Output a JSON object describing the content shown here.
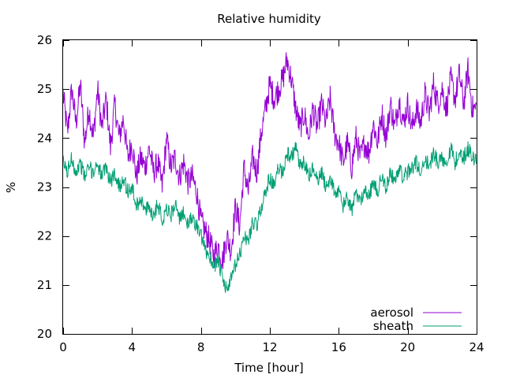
{
  "chart_data": {
    "type": "line",
    "title": "Relative humidity",
    "xlabel": "Time [hour]",
    "ylabel": "%",
    "xlim": [
      0,
      24
    ],
    "ylim": [
      20,
      26
    ],
    "xticks": [
      0,
      4,
      8,
      12,
      16,
      20,
      24
    ],
    "yticks": [
      20,
      21,
      22,
      23,
      24,
      25,
      26
    ],
    "grid": false,
    "legend_position": "bottom-right",
    "series": [
      {
        "name": "aerosol",
        "color": "#9400d3",
        "x": [
          0,
          0.25,
          0.5,
          0.75,
          1,
          1.25,
          1.5,
          1.75,
          2,
          2.25,
          2.5,
          2.75,
          3,
          3.25,
          3.5,
          3.75,
          4,
          4.25,
          4.5,
          4.75,
          5,
          5.25,
          5.5,
          5.75,
          6,
          6.25,
          6.5,
          6.75,
          7,
          7.25,
          7.5,
          7.75,
          8,
          8.25,
          8.5,
          8.75,
          9,
          9.25,
          9.5,
          9.75,
          10,
          10.25,
          10.5,
          10.75,
          11,
          11.25,
          11.5,
          11.75,
          12,
          12.25,
          12.5,
          12.75,
          13,
          13.25,
          13.5,
          13.75,
          14,
          14.25,
          14.5,
          14.75,
          15,
          15.25,
          15.5,
          15.75,
          16,
          16.25,
          16.5,
          16.75,
          17,
          17.25,
          17.5,
          17.75,
          18,
          18.25,
          18.5,
          18.75,
          19,
          19.25,
          19.5,
          19.75,
          20,
          20.25,
          20.5,
          20.75,
          21,
          21.25,
          21.5,
          21.75,
          22,
          22.25,
          22.5,
          22.75,
          23,
          23.25,
          23.5,
          23.75
        ],
        "values": [
          24.9,
          24.1,
          25.0,
          24.3,
          25.1,
          23.9,
          24.6,
          24.0,
          25.0,
          24.2,
          24.8,
          23.8,
          24.7,
          24.0,
          24.4,
          23.6,
          23.9,
          23.2,
          23.6,
          23.4,
          23.8,
          23.3,
          23.5,
          23.0,
          24.0,
          23.4,
          23.6,
          23.2,
          23.5,
          23.1,
          23.2,
          22.9,
          22.3,
          22.1,
          21.9,
          21.6,
          21.8,
          21.5,
          22.0,
          21.7,
          22.6,
          22.2,
          23.4,
          22.9,
          23.6,
          23.3,
          24.1,
          24.6,
          25.1,
          24.8,
          25.0,
          25.2,
          25.6,
          25.2,
          24.6,
          24.2,
          24.5,
          24.0,
          24.6,
          24.2,
          24.7,
          24.3,
          24.8,
          24.1,
          23.9,
          23.5,
          23.9,
          23.4,
          24.0,
          23.6,
          23.9,
          23.7,
          24.3,
          23.9,
          24.5,
          24.0,
          24.7,
          24.2,
          24.8,
          24.3,
          24.7,
          24.2,
          24.6,
          24.3,
          24.9,
          24.5,
          25.1,
          24.7,
          25.0,
          24.6,
          25.2,
          24.8,
          25.3,
          24.7,
          25.4,
          24.6
        ]
      },
      {
        "name": "sheath",
        "color": "#009e73",
        "x": [
          0,
          0.25,
          0.5,
          0.75,
          1,
          1.25,
          1.5,
          1.75,
          2,
          2.25,
          2.5,
          2.75,
          3,
          3.25,
          3.5,
          3.75,
          4,
          4.25,
          4.5,
          4.75,
          5,
          5.25,
          5.5,
          5.75,
          6,
          6.25,
          6.5,
          6.75,
          7,
          7.25,
          7.5,
          7.75,
          8,
          8.25,
          8.5,
          8.75,
          9,
          9.25,
          9.5,
          9.75,
          10,
          10.25,
          10.5,
          10.75,
          11,
          11.25,
          11.5,
          11.75,
          12,
          12.25,
          12.5,
          12.75,
          13,
          13.25,
          13.5,
          13.75,
          14,
          14.25,
          14.5,
          14.75,
          15,
          15.25,
          15.5,
          15.75,
          16,
          16.25,
          16.5,
          16.75,
          17,
          17.25,
          17.5,
          17.75,
          18,
          18.25,
          18.5,
          18.75,
          19,
          19.25,
          19.5,
          19.75,
          20,
          20.25,
          20.5,
          20.75,
          21,
          21.25,
          21.5,
          21.75,
          22,
          22.25,
          22.5,
          22.75,
          23,
          23.25,
          23.5,
          23.75
        ],
        "values": [
          23.5,
          23.3,
          23.6,
          23.3,
          23.5,
          23.2,
          23.4,
          23.3,
          23.5,
          23.2,
          23.4,
          23.1,
          23.3,
          23.0,
          23.2,
          22.9,
          23.0,
          22.6,
          22.8,
          22.5,
          22.6,
          22.4,
          22.7,
          22.3,
          22.6,
          22.4,
          22.7,
          22.3,
          22.5,
          22.2,
          22.4,
          22.2,
          22.0,
          21.7,
          21.6,
          21.4,
          21.5,
          21.1,
          20.9,
          21.1,
          21.4,
          21.6,
          22.0,
          21.9,
          22.3,
          22.2,
          22.6,
          22.9,
          23.2,
          23.0,
          23.4,
          23.3,
          23.7,
          23.6,
          23.8,
          23.4,
          23.5,
          23.2,
          23.4,
          23.1,
          23.3,
          23.0,
          23.2,
          22.9,
          22.9,
          22.6,
          22.8,
          22.5,
          22.9,
          22.7,
          23.0,
          22.8,
          23.1,
          22.9,
          23.2,
          23.0,
          23.3,
          23.1,
          23.4,
          23.2,
          23.3,
          23.4,
          23.5,
          23.3,
          23.6,
          23.4,
          23.7,
          23.5,
          23.6,
          23.5,
          23.8,
          23.5,
          23.7,
          23.6,
          23.8,
          23.6
        ]
      }
    ]
  }
}
